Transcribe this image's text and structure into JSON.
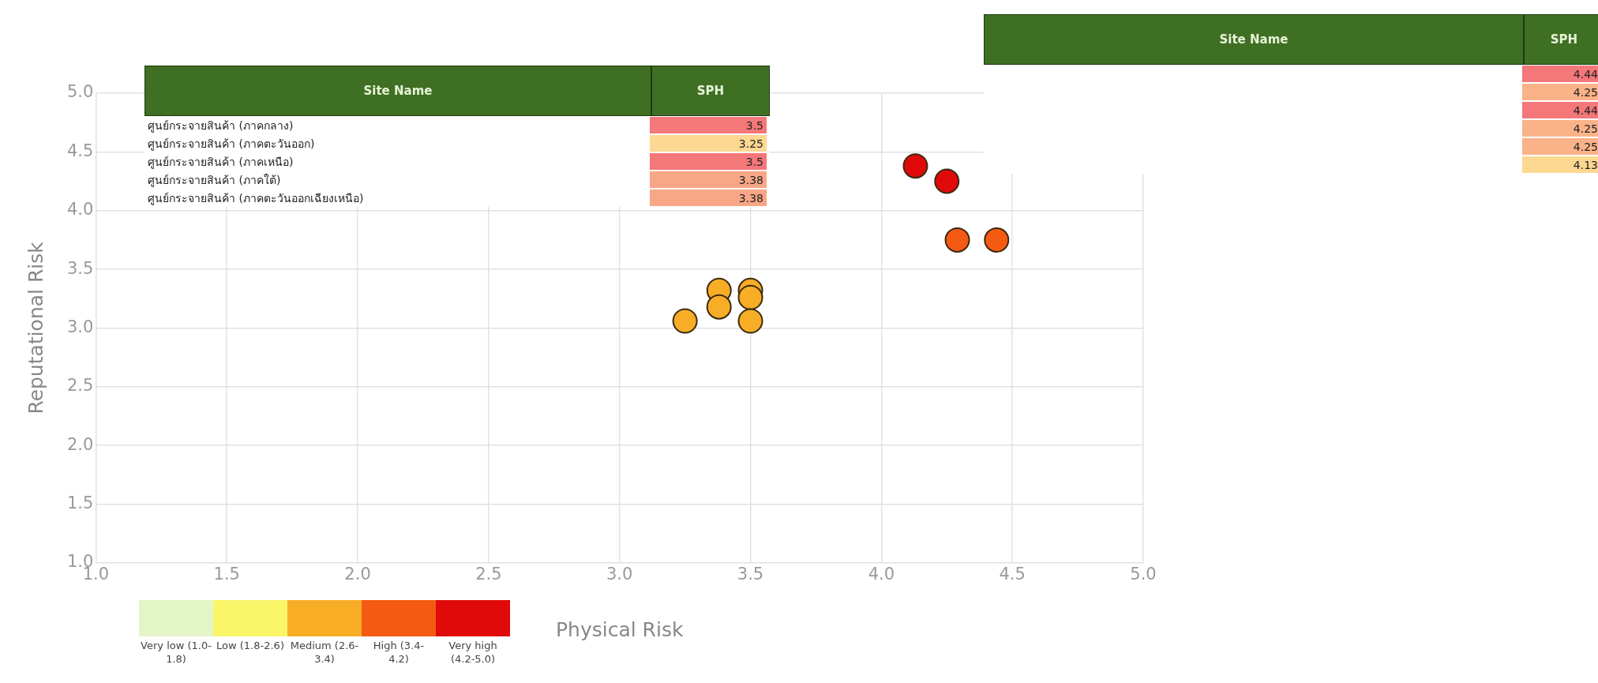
{
  "chart_data": [
    {
      "type": "scatter",
      "xlabel": "Physical Risk",
      "ylabel": "Reputational Risk",
      "xlim": [
        1.0,
        5.0
      ],
      "ylim": [
        1.0,
        5.0
      ],
      "xticks": [
        {
          "value": 1,
          "label": "1.0"
        },
        1.5,
        {
          "value": 2,
          "label": "2.0"
        },
        2.5,
        {
          "value": 3,
          "label": "3.0"
        },
        3.5,
        {
          "value": 4,
          "label": "4.0"
        },
        4.5,
        {
          "value": 5,
          "label": "5.0"
        }
      ],
      "yticks": [
        {
          "value": 1,
          "label": "1.0"
        },
        1.5,
        {
          "value": 2,
          "label": "2.0"
        },
        2.5,
        {
          "value": 3,
          "label": "3.0"
        },
        3.5,
        {
          "value": 4,
          "label": "4.0"
        },
        4.5,
        {
          "value": 5,
          "label": "5.0"
        }
      ],
      "grid": true,
      "marker": "circle",
      "annotations": [
        "Very low (1.0-1.8)",
        "Low (1.8-2.6)",
        "Medium (2.6-3.4)",
        "High (3.4-4.2)",
        "Very high (4.2-5.0)"
      ],
      "series": [
        {
          "color": "#f7ad26",
          "x": [
            3.25,
            3.38,
            3.38,
            3.5,
            3.5,
            3.5
          ],
          "values": [
            3.06,
            3.32,
            3.18,
            3.32,
            3.26,
            3.06
          ]
        },
        {
          "color": "#f45a12",
          "x": [
            4.29,
            4.44
          ],
          "values": [
            3.75,
            3.75
          ]
        },
        {
          "color": "#e00a0a",
          "x": [
            4.13,
            4.25
          ],
          "values": [
            4.38,
            4.25
          ]
        }
      ]
    },
    {
      "type": "other",
      "annotations": [
        "Site Name",
        "SPH",
        "ศูนย์กระจายสินค้า (ภาคกลาง)",
        "3.5",
        "ศูนย์กระจายสินค้า (ภาคตะวันออก)",
        "3.25",
        "ศูนย์กระจายสินค้า (ภาคเหนือ)",
        "3.5",
        "ศูนย์กระจายสินค้า (ภาคใต้)",
        "3.38",
        "ศูนย์กระจายสินค้า (ภาคตะวันออกเฉียงเหนือ)",
        "3.38"
      ]
    },
    {
      "type": "other",
      "annotations": [
        "Site Name",
        "SPH",
        "4.44",
        "4.25",
        "4.44",
        "4.25",
        "4.25",
        "4.13"
      ]
    }
  ]
}
